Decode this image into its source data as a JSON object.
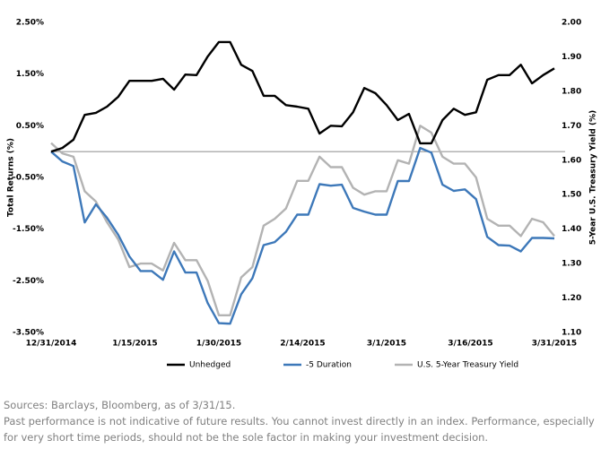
{
  "chart_data": {
    "type": "line",
    "y_label": "Total Returns (%)",
    "y2_label": "5-Year U.S. Treasury Yield (%)",
    "x": [
      "12/31/2014",
      "1/2/2015",
      "1/4/2015",
      "1/6/2015",
      "1/8/2015",
      "1/10/2015",
      "1/12/2015",
      "1/14/2015",
      "1/16/2015",
      "1/18/2015",
      "1/20/2015",
      "1/22/2015",
      "1/24/2015",
      "1/26/2015",
      "1/28/2015",
      "1/30/2015",
      "2/1/2015",
      "2/3/2015",
      "2/5/2015",
      "2/7/2015",
      "2/9/2015",
      "2/11/2015",
      "2/13/2015",
      "2/15/2015",
      "2/17/2015",
      "2/19/2015",
      "2/21/2015",
      "2/23/2015",
      "2/25/2015",
      "2/27/2015",
      "3/1/2015",
      "3/3/2015",
      "3/5/2015",
      "3/7/2015",
      "3/9/2015",
      "3/11/2015",
      "3/13/2015",
      "3/15/2015",
      "3/17/2015",
      "3/19/2015",
      "3/21/2015",
      "3/23/2015",
      "3/25/2015",
      "3/27/2015",
      "3/29/2015",
      "3/31/2015"
    ],
    "xlim": [
      "12/31/2014",
      "3/31/2015"
    ],
    "xticks": [
      "12/31/2014",
      "1/15/2015",
      "1/30/2015",
      "2/14/2015",
      "3/1/2015",
      "3/16/2015",
      "3/31/2015"
    ],
    "ylim": [
      -3.5,
      2.5
    ],
    "yticks": [
      {
        "value": 2.5,
        "label": "2.50%"
      },
      {
        "value": 1.5,
        "label": "1.50%"
      },
      {
        "value": 0.5,
        "label": "0.50%"
      },
      {
        "value": -0.5,
        "label": "-0.50%"
      },
      {
        "value": -1.5,
        "label": "-1.50%"
      },
      {
        "value": -2.5,
        "label": "-2.50%"
      },
      {
        "value": -3.5,
        "label": "-3.50%"
      }
    ],
    "y2lim": [
      1.1,
      2.0
    ],
    "y2ticks": [
      {
        "value": 2,
        "label": "2.00"
      },
      {
        "value": 1.9,
        "label": "1.90"
      },
      {
        "value": 1.8,
        "label": "1.80"
      },
      {
        "value": 1.7,
        "label": "1.70"
      },
      {
        "value": 1.6,
        "label": "1.60"
      },
      {
        "value": 1.5,
        "label": "1.50"
      },
      {
        "value": 1.4,
        "label": "1.40"
      },
      {
        "value": 1.3,
        "label": "1.30"
      },
      {
        "value": 1.2,
        "label": "1.20"
      },
      {
        "value": 1.1,
        "label": "1.10"
      }
    ],
    "legend": "bottom",
    "series": [
      {
        "name": "Unhedged",
        "color": "#000000",
        "values": [
          0.0,
          0.07,
          0.23,
          0.71,
          0.75,
          0.87,
          1.06,
          1.37,
          1.37,
          1.37,
          1.41,
          1.2,
          1.49,
          1.48,
          1.84,
          2.12,
          2.12,
          1.68,
          1.56,
          1.08,
          1.08,
          0.9,
          0.87,
          0.83,
          0.35,
          0.5,
          0.49,
          0.76,
          1.23,
          1.13,
          0.9,
          0.61,
          0.73,
          0.16,
          0.16,
          0.61,
          0.83,
          0.71,
          0.76,
          1.39,
          1.48,
          1.48,
          1.68,
          1.32,
          1.48,
          1.61
        ]
      },
      {
        "name": "-5 Duration",
        "color": "#3d78b9",
        "values": [
          0.0,
          -0.19,
          -0.28,
          -1.37,
          -1.02,
          -1.28,
          -1.61,
          -2.03,
          -2.31,
          -2.31,
          -2.48,
          -1.93,
          -2.34,
          -2.34,
          -2.93,
          -3.32,
          -3.33,
          -2.76,
          -2.45,
          -1.81,
          -1.75,
          -1.55,
          -1.22,
          -1.22,
          -0.63,
          -0.66,
          -0.64,
          -1.09,
          -1.16,
          -1.22,
          -1.22,
          -0.57,
          -0.57,
          0.07,
          -0.02,
          -0.64,
          -0.76,
          -0.73,
          -0.92,
          -1.65,
          -1.81,
          -1.82,
          -1.93,
          -1.67,
          -1.67,
          -1.68
        ]
      },
      {
        "name": "U.S. 5-Year Treasury Yield",
        "color": "#b3b3b3",
        "axis": "y2",
        "values": [
          1.65,
          1.62,
          1.61,
          1.51,
          1.48,
          1.42,
          1.37,
          1.29,
          1.3,
          1.3,
          1.28,
          1.36,
          1.31,
          1.31,
          1.25,
          1.15,
          1.15,
          1.26,
          1.29,
          1.41,
          1.43,
          1.46,
          1.54,
          1.54,
          1.61,
          1.58,
          1.58,
          1.52,
          1.5,
          1.51,
          1.51,
          1.6,
          1.59,
          1.7,
          1.68,
          1.61,
          1.59,
          1.59,
          1.55,
          1.43,
          1.41,
          1.41,
          1.38,
          1.43,
          1.42,
          1.38
        ]
      }
    ]
  },
  "footnote": {
    "source": "Sources: Barclays, Bloomberg, as of 3/31/15.",
    "disclaimer": "Past performance is not indicative of future results. You cannot invest directly in an index. Performance, especially for very short time periods, should not be the sole factor in making your investment decision."
  }
}
